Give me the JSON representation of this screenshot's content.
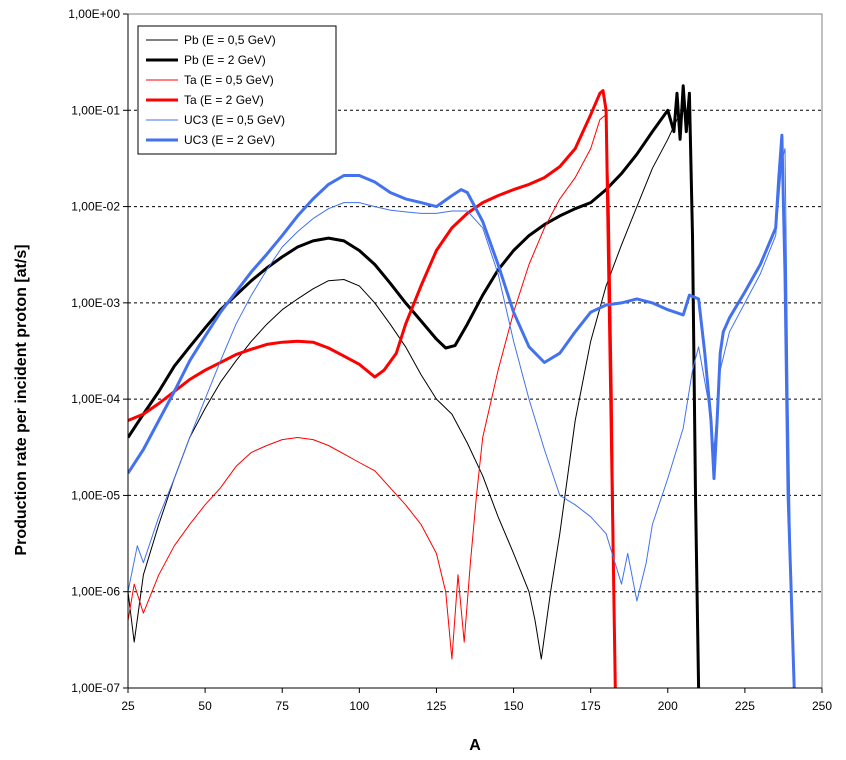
{
  "chart_data": {
    "type": "line",
    "title": "",
    "xlabel": "A",
    "ylabel": "Production rate per incident proton [at/s]",
    "xlim": [
      25,
      250
    ],
    "ylim": [
      1e-07,
      1
    ],
    "yscale": "log",
    "x_ticks": [
      25,
      50,
      75,
      100,
      125,
      150,
      175,
      200,
      225,
      250
    ],
    "x_tick_labels": [
      "25",
      "50",
      "75",
      "100",
      "125",
      "150",
      "175",
      "200",
      "225",
      "250"
    ],
    "y_ticks": [
      1e-07,
      1e-06,
      1e-05,
      0.0001,
      0.001,
      0.01,
      0.1,
      1
    ],
    "y_tick_labels": [
      "1,00E-07",
      "1,00E-06",
      "1,00E-05",
      "1,00E-04",
      "1,00E-03",
      "1,00E-02",
      "1,00E-01",
      "1,00E+00"
    ],
    "grid": "horizontal dashed",
    "legend_position": "top-left",
    "series": [
      {
        "name": "Pb (E = 0,5 GeV)",
        "color": "#000000",
        "width": 1,
        "x": [
          25,
          27,
          30,
          35,
          40,
          45,
          50,
          55,
          60,
          65,
          70,
          75,
          80,
          85,
          90,
          95,
          100,
          105,
          110,
          115,
          120,
          125,
          130,
          135,
          140,
          145,
          150,
          155,
          157,
          159,
          162,
          165,
          170,
          175,
          180,
          185,
          190,
          195,
          200,
          203,
          205,
          207,
          208,
          209,
          210
        ],
        "y": [
          1e-06,
          3e-07,
          1.5e-06,
          5e-06,
          1.5e-05,
          4e-05,
          8e-05,
          0.00015,
          0.00025,
          0.0004,
          0.0006,
          0.00085,
          0.0011,
          0.0014,
          0.0017,
          0.00175,
          0.0015,
          0.001,
          0.0006,
          0.00035,
          0.00018,
          0.0001,
          7e-05,
          3.5e-05,
          1.6e-05,
          6e-06,
          2.5e-06,
          1e-06,
          5e-07,
          2e-07,
          1e-06,
          4e-06,
          6e-05,
          0.0004,
          0.0015,
          0.004,
          0.01,
          0.025,
          0.05,
          0.08,
          0.1,
          0.07,
          0.005,
          1e-05,
          1e-07
        ]
      },
      {
        "name": "Pb (E = 2 GeV)",
        "color": "#000000",
        "width": 3,
        "x": [
          25,
          30,
          35,
          40,
          45,
          50,
          55,
          60,
          65,
          70,
          75,
          80,
          85,
          90,
          95,
          100,
          105,
          110,
          115,
          120,
          125,
          128,
          131,
          135,
          140,
          145,
          150,
          155,
          160,
          165,
          170,
          175,
          180,
          185,
          190,
          195,
          200,
          202,
          203,
          204,
          205,
          206,
          207,
          208,
          209,
          210
        ],
        "y": [
          4e-05,
          7e-05,
          0.00012,
          0.00022,
          0.00035,
          0.00055,
          0.00085,
          0.0012,
          0.0017,
          0.0023,
          0.003,
          0.0038,
          0.0044,
          0.0047,
          0.0044,
          0.0035,
          0.0025,
          0.0016,
          0.001,
          0.00065,
          0.00042,
          0.00034,
          0.00036,
          0.0006,
          0.0012,
          0.0022,
          0.0035,
          0.005,
          0.0065,
          0.008,
          0.0095,
          0.011,
          0.015,
          0.022,
          0.035,
          0.06,
          0.1,
          0.06,
          0.15,
          0.05,
          0.18,
          0.06,
          0.15,
          0.005,
          1e-05,
          1e-07
        ]
      },
      {
        "name": "Ta (E = 0,5 GeV)",
        "color": "#ff0000",
        "width": 1,
        "x": [
          25,
          27,
          30,
          35,
          40,
          45,
          50,
          55,
          60,
          65,
          70,
          75,
          80,
          85,
          90,
          95,
          100,
          105,
          110,
          115,
          120,
          125,
          128,
          130,
          132,
          134,
          136,
          138,
          140,
          145,
          150,
          155,
          160,
          165,
          170,
          175,
          178,
          180,
          181,
          182,
          183
        ],
        "y": [
          5e-07,
          1.2e-06,
          6e-07,
          1.5e-06,
          3e-06,
          5e-06,
          8e-06,
          1.2e-05,
          2e-05,
          2.8e-05,
          3.3e-05,
          3.8e-05,
          4e-05,
          3.8e-05,
          3.3e-05,
          2.7e-05,
          2.2e-05,
          1.8e-05,
          1.2e-05,
          8e-06,
          5e-06,
          2.5e-06,
          1e-06,
          2e-07,
          1.5e-06,
          3e-07,
          2e-06,
          1e-05,
          4e-05,
          0.0002,
          0.0008,
          0.0025,
          0.006,
          0.012,
          0.02,
          0.04,
          0.08,
          0.09,
          0.01,
          0.0001,
          1e-07
        ]
      },
      {
        "name": "Ta (E = 2 GeV)",
        "color": "#ff0000",
        "width": 3,
        "x": [
          25,
          30,
          35,
          40,
          45,
          50,
          55,
          60,
          65,
          70,
          75,
          80,
          85,
          90,
          95,
          100,
          105,
          108,
          112,
          115,
          120,
          125,
          130,
          135,
          140,
          145,
          150,
          155,
          160,
          165,
          170,
          175,
          178,
          179,
          180,
          181,
          182,
          183
        ],
        "y": [
          6e-05,
          7e-05,
          9e-05,
          0.00012,
          0.00016,
          0.0002,
          0.00024,
          0.00029,
          0.00033,
          0.00037,
          0.00039,
          0.0004,
          0.00039,
          0.00034,
          0.00028,
          0.00023,
          0.00017,
          0.0002,
          0.0003,
          0.0006,
          0.0015,
          0.0035,
          0.006,
          0.0085,
          0.011,
          0.013,
          0.015,
          0.017,
          0.02,
          0.026,
          0.04,
          0.09,
          0.15,
          0.16,
          0.1,
          0.001,
          1e-05,
          1e-07
        ]
      },
      {
        "name": "UC3 (E = 0,5 GeV)",
        "color": "#4472ee",
        "width": 1,
        "x": [
          25,
          28,
          30,
          35,
          40,
          45,
          50,
          55,
          60,
          65,
          70,
          75,
          80,
          85,
          90,
          95,
          100,
          105,
          110,
          115,
          120,
          125,
          130,
          135,
          140,
          145,
          150,
          155,
          160,
          165,
          170,
          175,
          180,
          185,
          187,
          190,
          193,
          195,
          200,
          205,
          208,
          210,
          213,
          215,
          217,
          220,
          225,
          230,
          235,
          237,
          238,
          239,
          240,
          241
        ],
        "y": [
          1e-06,
          3e-06,
          2e-06,
          6e-06,
          1.5e-05,
          4e-05,
          0.0001,
          0.00025,
          0.0006,
          0.0012,
          0.0022,
          0.0038,
          0.0055,
          0.0075,
          0.0095,
          0.011,
          0.011,
          0.01,
          0.0092,
          0.0088,
          0.0085,
          0.0085,
          0.009,
          0.009,
          0.006,
          0.002,
          0.0004,
          0.0001,
          3e-05,
          1e-05,
          8e-06,
          6e-06,
          4e-06,
          1.2e-06,
          2.5e-06,
          8e-07,
          2e-06,
          5e-06,
          1.5e-05,
          5e-05,
          0.0002,
          0.00035,
          0.0001,
          3e-05,
          0.0002,
          0.0005,
          0.001,
          0.002,
          0.005,
          0.03,
          0.04,
          0.0001,
          1e-06,
          1e-07
        ]
      },
      {
        "name": "UC3 (E = 2 GeV)",
        "color": "#4472ee",
        "width": 3,
        "x": [
          25,
          30,
          35,
          40,
          45,
          50,
          55,
          60,
          65,
          70,
          75,
          80,
          85,
          90,
          95,
          100,
          105,
          110,
          115,
          120,
          125,
          130,
          133,
          135,
          140,
          145,
          150,
          155,
          160,
          165,
          170,
          175,
          180,
          185,
          190,
          195,
          200,
          205,
          207,
          210,
          212,
          214,
          215,
          216,
          217,
          218,
          220,
          225,
          230,
          235,
          236,
          237,
          238,
          239,
          240,
          241
        ],
        "y": [
          1.7e-05,
          3e-05,
          6e-05,
          0.00012,
          0.00025,
          0.00045,
          0.0008,
          0.0013,
          0.0021,
          0.0032,
          0.005,
          0.008,
          0.012,
          0.017,
          0.021,
          0.021,
          0.018,
          0.014,
          0.012,
          0.011,
          0.01,
          0.013,
          0.015,
          0.014,
          0.007,
          0.0025,
          0.0008,
          0.00035,
          0.00024,
          0.0003,
          0.0005,
          0.0008,
          0.00095,
          0.001,
          0.0011,
          0.001,
          0.00085,
          0.00075,
          0.0012,
          0.0011,
          0.0003,
          6e-05,
          1.5e-05,
          6e-05,
          0.0003,
          0.0005,
          0.0007,
          0.0013,
          0.0025,
          0.006,
          0.02,
          0.055,
          0.002,
          1e-05,
          1e-06,
          1e-07
        ]
      }
    ]
  }
}
